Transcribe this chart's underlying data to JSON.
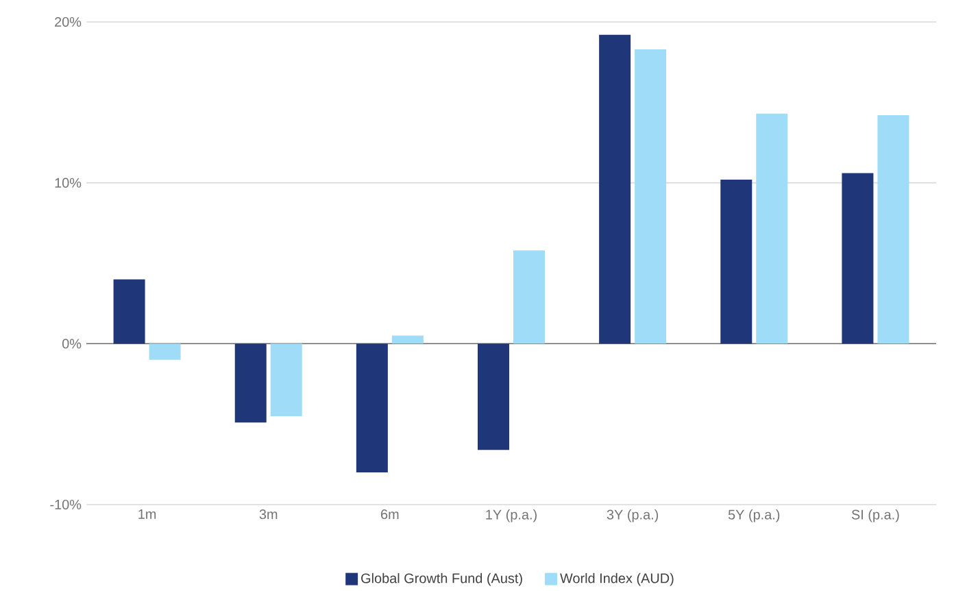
{
  "chart_data": {
    "type": "bar",
    "categories": [
      "1m",
      "3m",
      "6m",
      "1Y (p.a.)",
      "3Y (p.a.)",
      "5Y (p.a.)",
      "SI (p.a.)"
    ],
    "series": [
      {
        "name": "Global Growth Fund (Aust)",
        "color": "#1f3778",
        "values": [
          4.0,
          -4.9,
          -8.0,
          -6.6,
          19.2,
          10.2,
          10.6
        ]
      },
      {
        "name": "World Index (AUD)",
        "color": "#9edcf7",
        "values": [
          -1.0,
          -4.5,
          0.5,
          5.8,
          18.3,
          14.3,
          14.2
        ]
      }
    ],
    "ylim": [
      -10,
      20
    ],
    "yticks": [
      {
        "value": -10,
        "label": "-10%"
      },
      {
        "value": 0,
        "label": "0%"
      },
      {
        "value": 10,
        "label": "10%"
      },
      {
        "value": 20,
        "label": "20%"
      }
    ],
    "grid": "y",
    "legend": "bottom"
  }
}
